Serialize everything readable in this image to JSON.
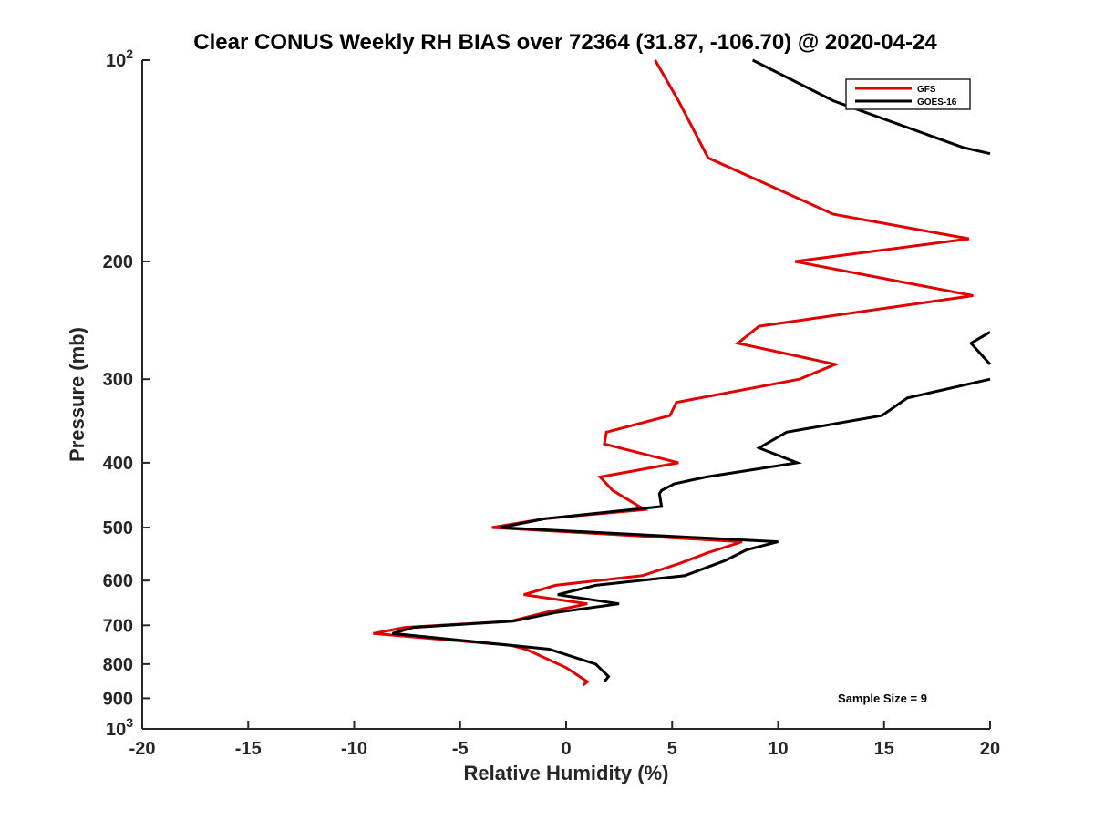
{
  "chart_data": {
    "type": "line",
    "title": "Clear CONUS Weekly RH BIAS over 72364 (31.87, -106.70) @ 2020-04-24",
    "xlabel": "Relative Humidity (%)",
    "ylabel": "Pressure (mb)",
    "xlim": [
      -20,
      20
    ],
    "ylim": [
      100,
      1000
    ],
    "y_scale": "log",
    "y_reversed": true,
    "x_ticks": [
      -20,
      -15,
      -10,
      -5,
      0,
      5,
      10,
      15,
      20
    ],
    "x_tick_labels": [
      "-20",
      "-15",
      "-10",
      "-5",
      "0",
      "5",
      "10",
      "15",
      "20"
    ],
    "y_ticks": [
      100,
      200,
      300,
      400,
      500,
      600,
      700,
      800,
      900,
      1000
    ],
    "y_tick_labels": [
      {
        "base": "10",
        "exp": "2"
      },
      {
        "base": "200",
        "exp": ""
      },
      {
        "base": "300",
        "exp": ""
      },
      {
        "base": "400",
        "exp": ""
      },
      {
        "base": "500",
        "exp": ""
      },
      {
        "base": "600",
        "exp": ""
      },
      {
        "base": "700",
        "exp": ""
      },
      {
        "base": "800",
        "exp": ""
      },
      {
        "base": "900",
        "exp": ""
      },
      {
        "base": "10",
        "exp": "3"
      }
    ],
    "grid": false,
    "legend_position": "top-right",
    "annotation": "Sample Size = 9",
    "series": [
      {
        "name": "GFS",
        "color": "#e00000",
        "points": [
          [
            4.2,
            100
          ],
          [
            5.3,
            115
          ],
          [
            6.7,
            140
          ],
          [
            12.6,
            170
          ],
          [
            19.0,
            185
          ],
          [
            10.8,
            200
          ],
          [
            19.2,
            225
          ],
          [
            9.1,
            250
          ],
          [
            8.1,
            265
          ],
          [
            12.7,
            285
          ],
          [
            11.0,
            300
          ],
          [
            5.2,
            325
          ],
          [
            4.9,
            340
          ],
          [
            1.9,
            360
          ],
          [
            1.8,
            375
          ],
          [
            5.3,
            400
          ],
          [
            1.6,
            420
          ],
          [
            2.2,
            440
          ],
          [
            3.7,
            470
          ],
          [
            -1.0,
            485
          ],
          [
            -3.5,
            500
          ],
          [
            8.3,
            525
          ],
          [
            6.7,
            545
          ],
          [
            5.4,
            565
          ],
          [
            3.6,
            590
          ],
          [
            -0.5,
            610
          ],
          [
            -2.0,
            630
          ],
          [
            1.0,
            650
          ],
          [
            -1.0,
            670
          ],
          [
            -2.6,
            690
          ],
          [
            -7.6,
            705
          ],
          [
            -9.1,
            720
          ],
          [
            -2.6,
            750
          ],
          [
            -1.9,
            760
          ],
          [
            0.0,
            810
          ],
          [
            1.0,
            850
          ],
          [
            0.8,
            860
          ]
        ]
      },
      {
        "name": "GOES-16",
        "color": "#000000",
        "points": [
          [
            8.8,
            100
          ],
          [
            12.6,
            115
          ],
          [
            18.7,
            135
          ],
          [
            20.0,
            138
          ],
          null,
          [
            20.0,
            255
          ],
          [
            19.1,
            265
          ],
          [
            20.0,
            285
          ],
          null,
          [
            20.0,
            300
          ],
          [
            16.1,
            320
          ],
          [
            14.9,
            340
          ],
          [
            10.4,
            360
          ],
          [
            9.1,
            380
          ],
          [
            10.9,
            400
          ],
          [
            6.6,
            420
          ],
          [
            5.1,
            430
          ],
          [
            4.5,
            440
          ],
          [
            4.4,
            445
          ],
          [
            4.5,
            465
          ],
          [
            -1.0,
            485
          ],
          [
            -3.1,
            500
          ],
          [
            10.0,
            525
          ],
          [
            8.5,
            540
          ],
          [
            7.5,
            560
          ],
          [
            5.6,
            590
          ],
          [
            1.4,
            610
          ],
          [
            -0.4,
            630
          ],
          [
            2.5,
            650
          ],
          [
            -0.5,
            670
          ],
          [
            -2.5,
            690
          ],
          [
            -7.2,
            705
          ],
          [
            -8.2,
            720
          ],
          [
            -0.8,
            760
          ],
          [
            1.4,
            800
          ],
          [
            2.0,
            835
          ],
          [
            1.8,
            850
          ]
        ]
      }
    ]
  }
}
